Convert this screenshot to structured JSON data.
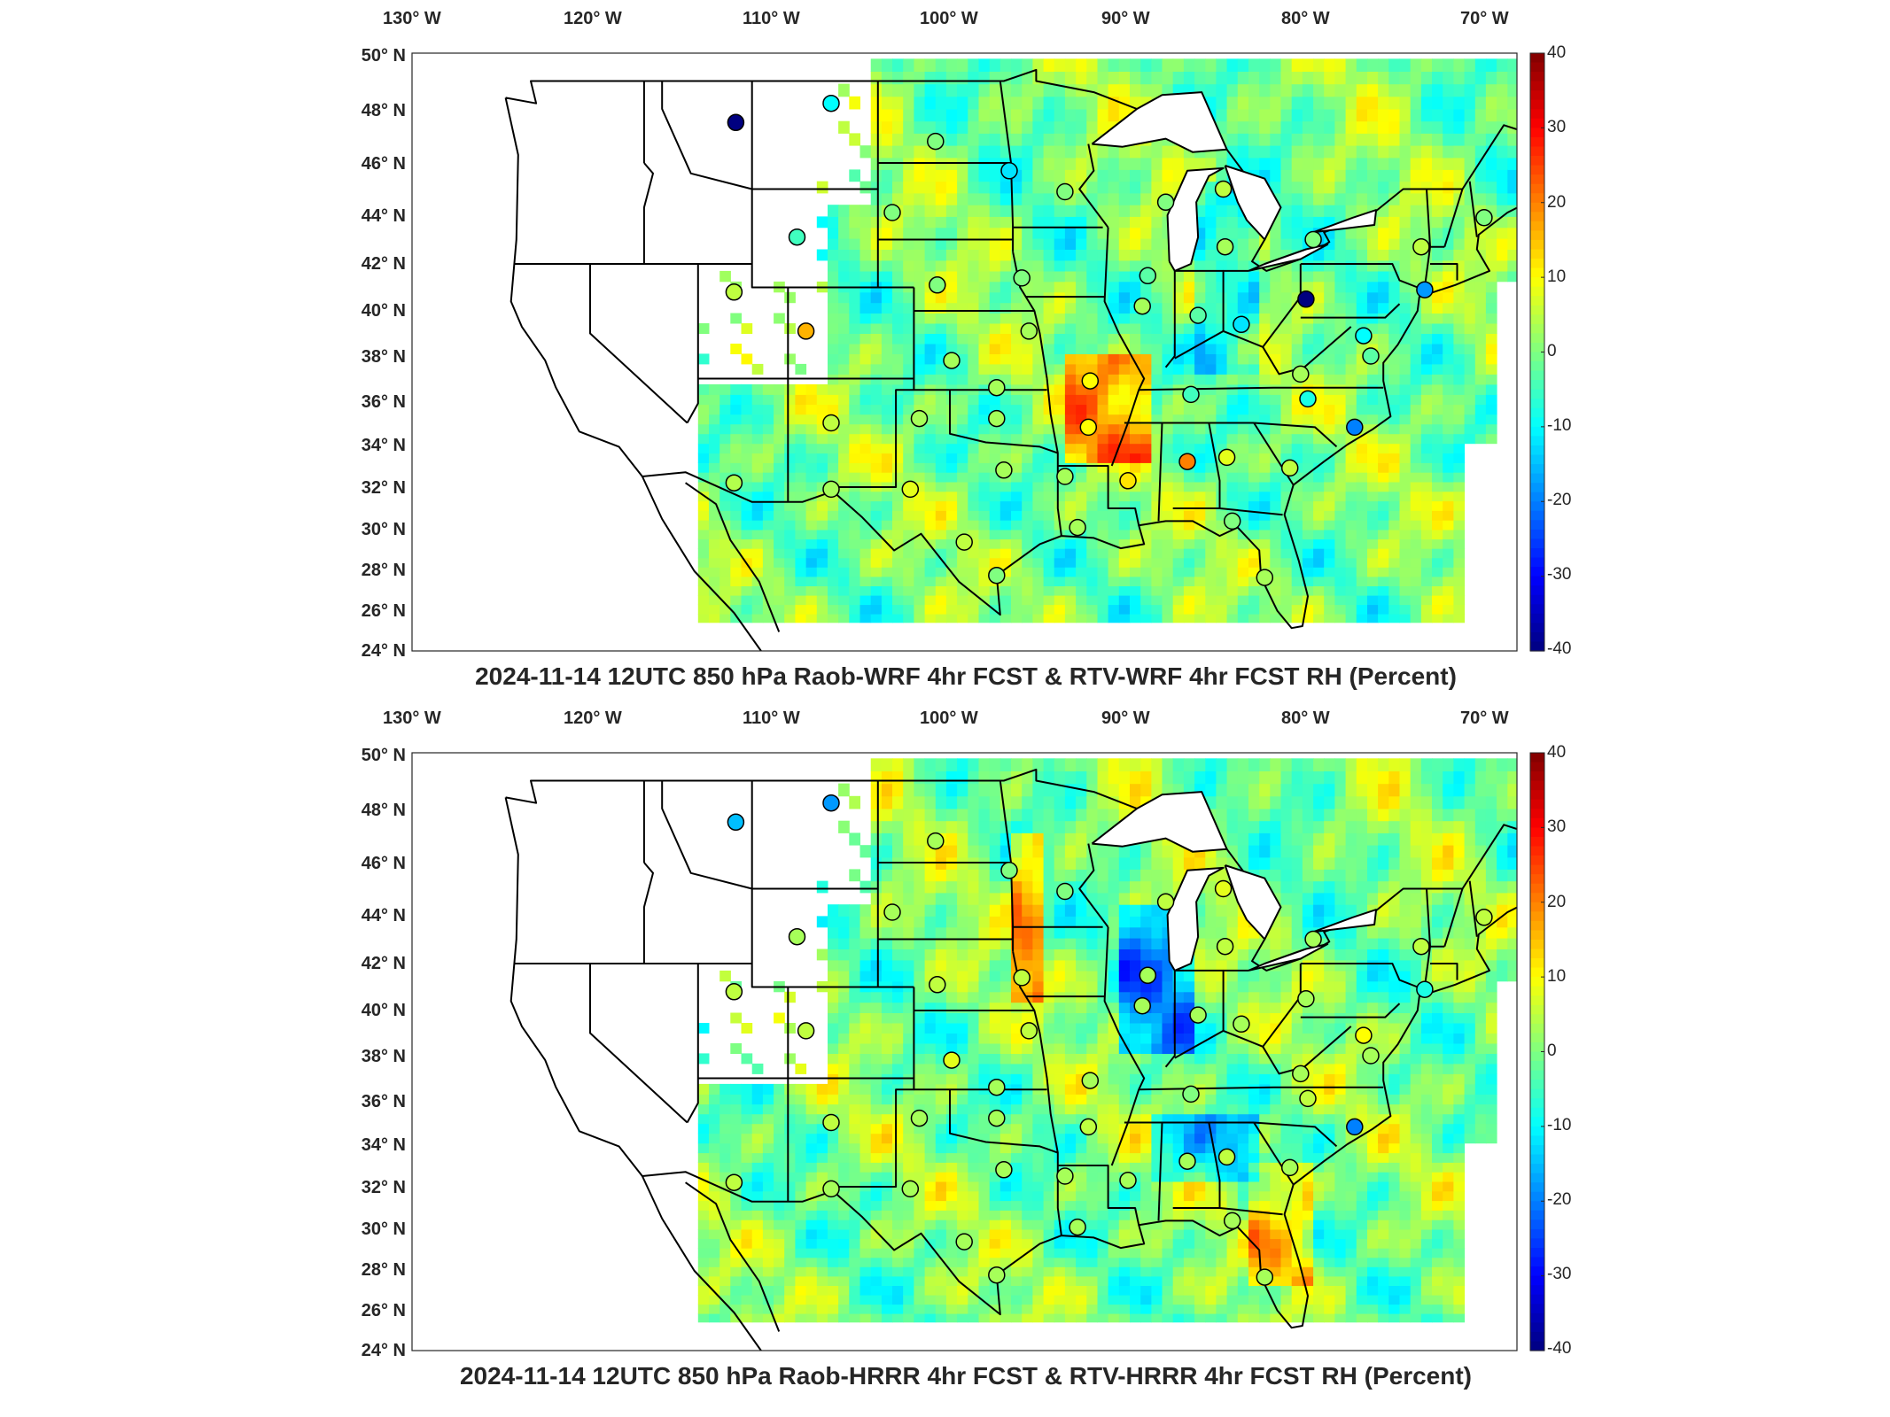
{
  "panels": [
    {
      "title": "2024-11-14 12UTC 850 hPa Raob-WRF 4hr FCST & RTV-WRF 4hr FCST RH (Percent)",
      "lon_labels": [
        "130° W",
        "120° W",
        "110° W",
        "100° W",
        "90° W",
        "80° W",
        "70° W"
      ],
      "lat_labels": [
        "50° N",
        "48° N",
        "46° N",
        "44° N",
        "42° N",
        "40° N",
        "38° N",
        "36° N",
        "34° N",
        "32° N",
        "30° N",
        "28° N",
        "26° N",
        "24° N"
      ],
      "colorbar_labels": [
        "40",
        "30",
        "20",
        "10",
        "0",
        "-10",
        "-20",
        "-30",
        "-40"
      ],
      "station_bias": [
        {
          "lon": -111.9,
          "lat": 47.5,
          "value": -40
        },
        {
          "lon": -106.6,
          "lat": 48.2,
          "value": -10
        },
        {
          "lon": -100.8,
          "lat": 46.8,
          "value": 0
        },
        {
          "lon": -96.7,
          "lat": 45.7,
          "value": -12
        },
        {
          "lon": -93.6,
          "lat": 44.9,
          "value": 0
        },
        {
          "lon": -103.2,
          "lat": 44.1,
          "value": 0
        },
        {
          "lon": -108.5,
          "lat": 43.1,
          "value": -5
        },
        {
          "lon": -112.0,
          "lat": 40.8,
          "value": 5
        },
        {
          "lon": -108.0,
          "lat": 39.1,
          "value": 16
        },
        {
          "lon": -100.7,
          "lat": 41.1,
          "value": 0
        },
        {
          "lon": -96.0,
          "lat": 41.4,
          "value": 0
        },
        {
          "lon": -99.9,
          "lat": 37.8,
          "value": 3
        },
        {
          "lon": -95.6,
          "lat": 39.1,
          "value": 3
        },
        {
          "lon": -92.2,
          "lat": 36.9,
          "value": 10
        },
        {
          "lon": -106.6,
          "lat": 35.0,
          "value": 5
        },
        {
          "lon": -101.7,
          "lat": 35.2,
          "value": 3
        },
        {
          "lon": -97.4,
          "lat": 35.2,
          "value": 3
        },
        {
          "lon": -97.4,
          "lat": 36.6,
          "value": 3
        },
        {
          "lon": -92.3,
          "lat": 34.8,
          "value": 10
        },
        {
          "lon": -90.1,
          "lat": 32.3,
          "value": 12
        },
        {
          "lon": -86.8,
          "lat": 33.2,
          "value": 20
        },
        {
          "lon": -84.6,
          "lat": 33.4,
          "value": 8
        },
        {
          "lon": -112.0,
          "lat": 32.2,
          "value": 4
        },
        {
          "lon": -106.6,
          "lat": 31.9,
          "value": 3
        },
        {
          "lon": -102.2,
          "lat": 31.9,
          "value": 8
        },
        {
          "lon": -97.0,
          "lat": 32.8,
          "value": 3
        },
        {
          "lon": -93.6,
          "lat": 32.5,
          "value": 3
        },
        {
          "lon": -99.2,
          "lat": 29.4,
          "value": 5
        },
        {
          "lon": -92.9,
          "lat": 30.1,
          "value": 3
        },
        {
          "lon": -97.4,
          "lat": 27.8,
          "value": 0
        },
        {
          "lon": -82.5,
          "lat": 27.7,
          "value": 3
        },
        {
          "lon": -84.3,
          "lat": 30.4,
          "value": 0
        },
        {
          "lon": -81.1,
          "lat": 32.9,
          "value": 5
        },
        {
          "lon": -77.5,
          "lat": 34.8,
          "value": -20
        },
        {
          "lon": -80.1,
          "lat": 36.1,
          "value": -8
        },
        {
          "lon": -80.5,
          "lat": 37.2,
          "value": 3
        },
        {
          "lon": -86.6,
          "lat": 36.3,
          "value": -5
        },
        {
          "lon": -86.2,
          "lat": 39.8,
          "value": -3
        },
        {
          "lon": -89.3,
          "lat": 40.2,
          "value": 3
        },
        {
          "lon": -83.8,
          "lat": 39.4,
          "value": -12
        },
        {
          "lon": -80.2,
          "lat": 40.5,
          "value": -40
        },
        {
          "lon": -77.0,
          "lat": 38.9,
          "value": -10
        },
        {
          "lon": -76.6,
          "lat": 38.0,
          "value": -3
        },
        {
          "lon": -73.6,
          "lat": 40.9,
          "value": -18
        },
        {
          "lon": -79.8,
          "lat": 43.0,
          "value": 0
        },
        {
          "lon": -73.8,
          "lat": 42.7,
          "value": 5
        },
        {
          "lon": -70.3,
          "lat": 43.9,
          "value": 0
        },
        {
          "lon": -84.7,
          "lat": 42.7,
          "value": 3
        },
        {
          "lon": -88.0,
          "lat": 44.5,
          "value": 0
        },
        {
          "lon": -84.8,
          "lat": 45.0,
          "value": 5
        },
        {
          "lon": -89.0,
          "lat": 41.5,
          "value": -3
        }
      ]
    },
    {
      "title": "2024-11-14 12UTC 850 hPa Raob-HRRR 4hr FCST & RTV-HRRR 4hr FCST RH (Percent)",
      "lon_labels": [
        "130° W",
        "120° W",
        "110° W",
        "100° W",
        "90° W",
        "80° W",
        "70° W"
      ],
      "lat_labels": [
        "50° N",
        "48° N",
        "46° N",
        "44° N",
        "42° N",
        "40° N",
        "38° N",
        "36° N",
        "34° N",
        "32° N",
        "30° N",
        "28° N",
        "26° N",
        "24° N"
      ],
      "colorbar_labels": [
        "40",
        "30",
        "20",
        "10",
        "0",
        "-10",
        "-20",
        "-30",
        "-40"
      ],
      "station_bias": [
        {
          "lon": -111.9,
          "lat": 47.5,
          "value": -15
        },
        {
          "lon": -106.6,
          "lat": 48.2,
          "value": -18
        },
        {
          "lon": -100.8,
          "lat": 46.8,
          "value": 3
        },
        {
          "lon": -96.7,
          "lat": 45.7,
          "value": 0
        },
        {
          "lon": -93.6,
          "lat": 44.9,
          "value": 0
        },
        {
          "lon": -103.2,
          "lat": 44.1,
          "value": 3
        },
        {
          "lon": -108.5,
          "lat": 43.1,
          "value": 3
        },
        {
          "lon": -112.0,
          "lat": 40.8,
          "value": 5
        },
        {
          "lon": -108.0,
          "lat": 39.1,
          "value": 5
        },
        {
          "lon": -100.7,
          "lat": 41.1,
          "value": 5
        },
        {
          "lon": -96.0,
          "lat": 41.4,
          "value": 5
        },
        {
          "lon": -99.9,
          "lat": 37.8,
          "value": 8
        },
        {
          "lon": -95.6,
          "lat": 39.1,
          "value": 5
        },
        {
          "lon": -92.2,
          "lat": 36.9,
          "value": 3
        },
        {
          "lon": -106.6,
          "lat": 35.0,
          "value": 5
        },
        {
          "lon": -101.7,
          "lat": 35.2,
          "value": 3
        },
        {
          "lon": -97.4,
          "lat": 35.2,
          "value": 3
        },
        {
          "lon": -97.4,
          "lat": 36.6,
          "value": 3
        },
        {
          "lon": -92.3,
          "lat": 34.8,
          "value": 5
        },
        {
          "lon": -90.1,
          "lat": 32.3,
          "value": 3
        },
        {
          "lon": -86.8,
          "lat": 33.2,
          "value": 3
        },
        {
          "lon": -84.6,
          "lat": 33.4,
          "value": 5
        },
        {
          "lon": -112.0,
          "lat": 32.2,
          "value": 5
        },
        {
          "lon": -106.6,
          "lat": 31.9,
          "value": 3
        },
        {
          "lon": -102.2,
          "lat": 31.9,
          "value": 3
        },
        {
          "lon": -97.0,
          "lat": 32.8,
          "value": 3
        },
        {
          "lon": -93.6,
          "lat": 32.5,
          "value": 3
        },
        {
          "lon": -99.2,
          "lat": 29.4,
          "value": 3
        },
        {
          "lon": -92.9,
          "lat": 30.1,
          "value": 3
        },
        {
          "lon": -97.4,
          "lat": 27.8,
          "value": 3
        },
        {
          "lon": -82.5,
          "lat": 27.7,
          "value": 3
        },
        {
          "lon": -84.3,
          "lat": 30.4,
          "value": 3
        },
        {
          "lon": -81.1,
          "lat": 32.9,
          "value": 3
        },
        {
          "lon": -77.5,
          "lat": 34.8,
          "value": -20
        },
        {
          "lon": -80.1,
          "lat": 36.1,
          "value": 5
        },
        {
          "lon": -80.5,
          "lat": 37.2,
          "value": 3
        },
        {
          "lon": -86.6,
          "lat": 36.3,
          "value": 0
        },
        {
          "lon": -86.2,
          "lat": 39.8,
          "value": 3
        },
        {
          "lon": -89.3,
          "lat": 40.2,
          "value": 3
        },
        {
          "lon": -83.8,
          "lat": 39.4,
          "value": 3
        },
        {
          "lon": -80.2,
          "lat": 40.5,
          "value": 3
        },
        {
          "lon": -77.0,
          "lat": 38.9,
          "value": 10
        },
        {
          "lon": -76.6,
          "lat": 38.0,
          "value": 3
        },
        {
          "lon": -73.6,
          "lat": 40.9,
          "value": -8
        },
        {
          "lon": -79.8,
          "lat": 43.0,
          "value": 3
        },
        {
          "lon": -73.8,
          "lat": 42.7,
          "value": 5
        },
        {
          "lon": -70.3,
          "lat": 43.9,
          "value": 5
        },
        {
          "lon": -84.7,
          "lat": 42.7,
          "value": 5
        },
        {
          "lon": -88.0,
          "lat": 44.5,
          "value": 5
        },
        {
          "lon": -84.8,
          "lat": 45.0,
          "value": 8
        },
        {
          "lon": -89.0,
          "lat": 41.5,
          "value": 3
        }
      ]
    }
  ]
}
